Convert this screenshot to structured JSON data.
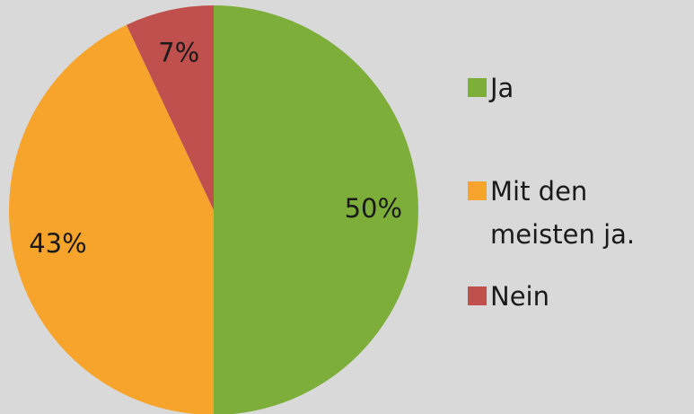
{
  "chart_data": {
    "type": "pie",
    "categories": [
      "Ja",
      "Mit den meisten ja.",
      "Nein"
    ],
    "values": [
      50,
      43,
      7
    ],
    "value_labels": [
      "50%",
      "43%",
      "7%"
    ],
    "colors": [
      "#7dae3a",
      "#f7a42c",
      "#c0504d"
    ],
    "legend": "right"
  }
}
